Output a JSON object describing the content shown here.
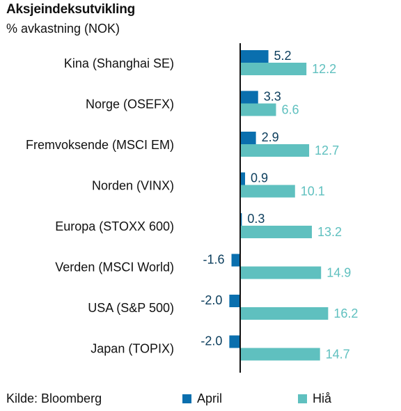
{
  "title": "Aksjeindeksutvikling",
  "subtitle": "% avkastning (NOK)",
  "source": "Kilde: Bloomberg",
  "colors": {
    "april": "#0a6fae",
    "hia": "#5fc0bf"
  },
  "chart_data": {
    "type": "bar",
    "orientation": "horizontal",
    "categories": [
      "Kina (Shanghai SE)",
      "Norge (OSEFX)",
      "Fremvoksende (MSCI EM)",
      "Norden (VINX)",
      "Europa (STOXX 600)",
      "Verden (MSCI World)",
      "USA (S&P 500)",
      "Japan (TOPIX)"
    ],
    "series": [
      {
        "name": "April",
        "values": [
          5.2,
          3.3,
          2.9,
          0.9,
          0.3,
          -1.6,
          -2.0,
          -2.0
        ],
        "labels": [
          "5.2",
          "3.3",
          "2.9",
          "0.9",
          "0.3",
          "-1.6",
          "-2.0",
          "-2.0"
        ]
      },
      {
        "name": "Hiå",
        "values": [
          12.2,
          6.6,
          12.7,
          10.1,
          13.2,
          14.9,
          16.2,
          14.7
        ],
        "labels": [
          "12.2",
          "6.6",
          "12.7",
          "10.1",
          "13.2",
          "14.9",
          "16.2",
          "14.7"
        ]
      }
    ],
    "grid": false,
    "legend_position": "bottom"
  }
}
